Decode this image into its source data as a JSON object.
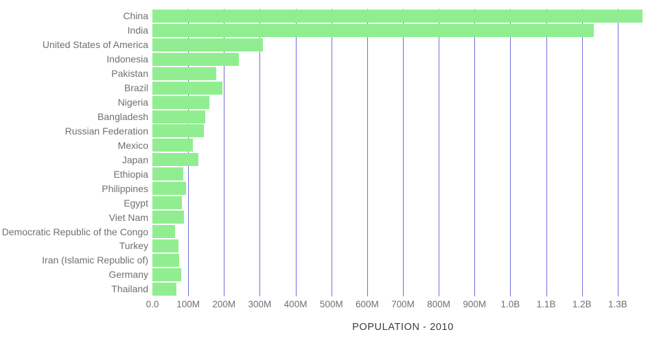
{
  "chart_data": {
    "type": "bar",
    "orientation": "horizontal",
    "title": "POPULATION - 2010",
    "series_name": "Population",
    "categories": [
      "China",
      "India",
      "United States of America",
      "Indonesia",
      "Pakistan",
      "Brazil",
      "Nigeria",
      "Bangladesh",
      "Russian Federation",
      "Mexico",
      "Japan",
      "Ethiopia",
      "Philippines",
      "Egypt",
      "Viet Nam",
      "Democratic Republic of the Congo",
      "Turkey",
      "Iran (Islamic Republic of)",
      "Germany",
      "Thailand"
    ],
    "values_millions": [
      1369,
      1234,
      309,
      242,
      179,
      196,
      159,
      148,
      143,
      114,
      128,
      87,
      94,
      82,
      88,
      64,
      72,
      74,
      81,
      67
    ],
    "xlim_millions": [
      0,
      1400
    ],
    "x_ticks": [
      {
        "label": "0.0",
        "value": 0
      },
      {
        "label": "100M",
        "value": 100
      },
      {
        "label": "200M",
        "value": 200
      },
      {
        "label": "300M",
        "value": 300
      },
      {
        "label": "400M",
        "value": 400
      },
      {
        "label": "500M",
        "value": 500
      },
      {
        "label": "600M",
        "value": 600
      },
      {
        "label": "700M",
        "value": 700
      },
      {
        "label": "800M",
        "value": 800
      },
      {
        "label": "900M",
        "value": 900
      },
      {
        "label": "1.0B",
        "value": 1000
      },
      {
        "label": "1.1B",
        "value": 1100
      },
      {
        "label": "1.2B",
        "value": 1200
      },
      {
        "label": "1.3B",
        "value": 1300
      }
    ],
    "grid": true,
    "legend_position": "none",
    "colors": {
      "bar": "#90ee90",
      "gridline": "#6e6edc",
      "axis_label": "#6f6f6f",
      "title": "#3c3c3c",
      "background": "#ffffff"
    }
  }
}
